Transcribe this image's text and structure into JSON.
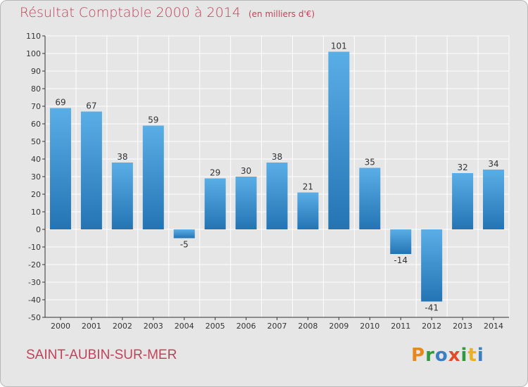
{
  "header": {
    "title": "Résultat Comptable 2000 à 2014",
    "unit": "(en milliers d'€)"
  },
  "footer": {
    "commune": "SAINT-AUBIN-SUR-MER",
    "logo": "Proxiti"
  },
  "logo_letters": [
    {
      "ch": "P",
      "color": "#e8871e"
    },
    {
      "ch": "r",
      "color": "#2f9a3c"
    },
    {
      "ch": "o",
      "color": "#3a7fc4"
    },
    {
      "ch": "x",
      "color": "#e14b2a"
    },
    {
      "ch": "i",
      "color": "#2f9a3c"
    },
    {
      "ch": "t",
      "color": "#e8b31e"
    },
    {
      "ch": "i",
      "color": "#3a7fc4"
    }
  ],
  "chart_data": {
    "type": "bar",
    "title": "Résultat Comptable 2000 à 2014",
    "subtitle": "(en milliers d'€)",
    "categories": [
      "2000",
      "2001",
      "2002",
      "2003",
      "2004",
      "2005",
      "2006",
      "2007",
      "2008",
      "2009",
      "2010",
      "2011",
      "2012",
      "2013",
      "2014"
    ],
    "values": [
      69,
      67,
      38,
      59,
      -5,
      29,
      30,
      38,
      21,
      101,
      35,
      -14,
      -41,
      32,
      34
    ],
    "ylim": [
      -50,
      110
    ],
    "yticks": [
      -50,
      -40,
      -30,
      -20,
      -10,
      0,
      10,
      20,
      30,
      40,
      50,
      60,
      70,
      80,
      90,
      100,
      110
    ],
    "grid": true,
    "colors": {
      "bar_top": "#5aaee6",
      "bar_bottom": "#2474b4",
      "grid": "#ffffff",
      "axis": "#333333"
    }
  }
}
